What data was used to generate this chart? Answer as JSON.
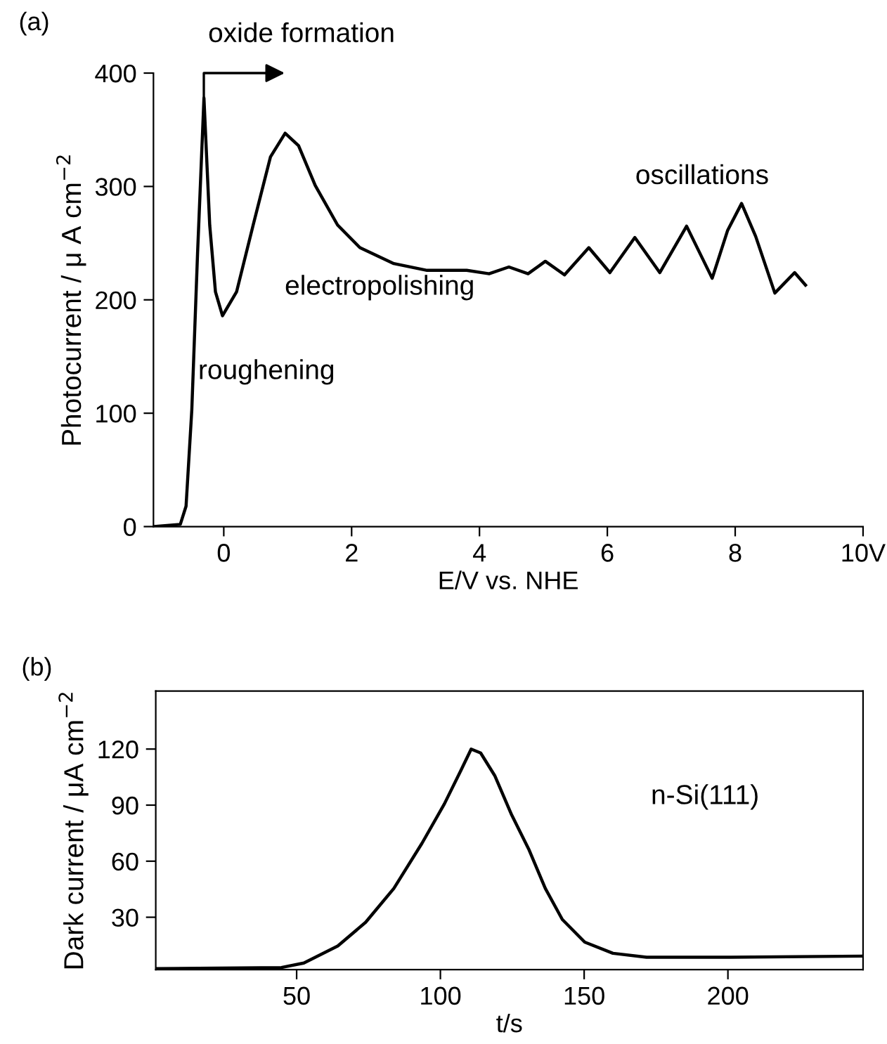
{
  "chart_data": [
    {
      "type": "line",
      "title": "(a)",
      "xlabel": "E/V vs. NHE",
      "ylabel": "Photocurrent / μ A cm$^{−2}$",
      "x": [
        -1.09,
        -0.68,
        -0.59,
        -0.5,
        -0.41,
        -0.31,
        -0.22,
        -0.13,
        -0.02,
        0.2,
        0.46,
        0.73,
        0.96,
        1.17,
        1.43,
        1.78,
        2.13,
        2.66,
        3.18,
        3.8,
        4.15,
        4.46,
        4.76,
        5.03,
        5.33,
        5.71,
        6.04,
        6.43,
        6.82,
        7.24,
        7.64,
        7.88,
        8.1,
        8.32,
        8.62,
        8.93,
        9.1
      ],
      "series": [
        {
          "color": "#000000",
          "values": [
            0,
            2,
            18,
            103,
            241,
            378,
            266,
            207,
            186,
            207,
            266,
            326,
            347,
            336,
            301,
            266,
            246,
            232,
            226,
            226,
            223,
            229,
            223,
            234,
            222,
            246,
            224,
            255,
            224,
            265,
            219,
            261,
            285,
            256,
            206,
            224,
            213
          ]
        }
      ],
      "xlim": [
        -1.1,
        10
      ],
      "xticks": [
        0,
        2,
        4,
        6,
        8,
        {
          "value": 10,
          "label": "10V"
        }
      ],
      "ylim": [
        0,
        400
      ],
      "yticks": [
        0,
        100,
        200,
        300,
        400
      ],
      "annotations": [
        "oxide formation",
        "electropolishing",
        "oscillations",
        "roughening"
      ],
      "grid": false,
      "legend": false
    },
    {
      "type": "line",
      "title": "(b)",
      "xlabel": "t/s",
      "ylabel": "Dark current / μA cm$^{−2}$",
      "x": [
        1.2,
        44.7,
        52.5,
        64.3,
        74,
        83.8,
        93.6,
        101.4,
        107.2,
        110.7,
        114,
        118.9,
        124.8,
        130.7,
        136.5,
        142.4,
        150.2,
        160,
        171.7,
        201,
        247
      ],
      "series": [
        {
          "color": "#000000",
          "values": [
            2.5,
            3.1,
            5.5,
            14.6,
            27.3,
            45.4,
            69.6,
            90.7,
            108.8,
            120,
            117.9,
            105.8,
            84.7,
            66.5,
            45.4,
            28.8,
            16.7,
            10.7,
            8.6,
            8.6,
            9.2
          ]
        }
      ],
      "xlim": [
        1,
        247
      ],
      "xticks": [
        50,
        100,
        150,
        200
      ],
      "ylim": [
        2,
        151
      ],
      "yticks": [
        30,
        60,
        90,
        120
      ],
      "annotations": [
        "n-Si(111)"
      ],
      "grid": false,
      "legend": false
    }
  ]
}
